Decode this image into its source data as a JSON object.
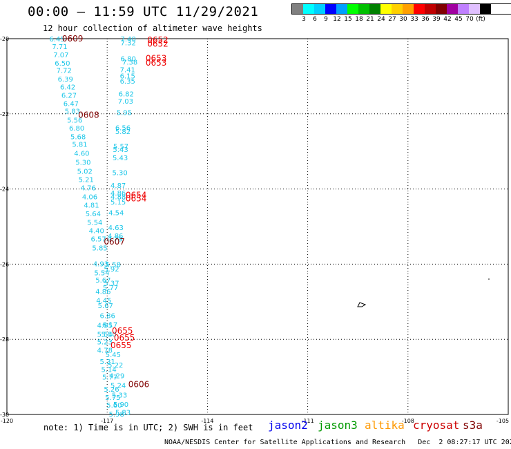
{
  "header": {
    "title": "00:00 – 11:59 UTC 11/29/2021",
    "subtitle": "12 hour collection of altimeter wave heights"
  },
  "legend": {
    "colors": [
      "#808080",
      "#00ffff",
      "#00d0ff",
      "#0000ff",
      "#00a0ff",
      "#00ff00",
      "#00c000",
      "#008000",
      "#ffff00",
      "#ffd000",
      "#ffa000",
      "#ff0000",
      "#c00000",
      "#800000",
      "#a000a0",
      "#c080ff",
      "#e0c0ff",
      "#000000"
    ],
    "ticks": [
      "3",
      "6",
      "9",
      "12",
      "15",
      "18",
      "21",
      "24",
      "27",
      "30",
      "33",
      "36",
      "39",
      "42",
      "45",
      "70",
      "(ft)"
    ]
  },
  "axes": {
    "x_ticks": [
      "-120",
      "-117",
      "-114",
      "-111",
      "-108",
      "-105"
    ],
    "y_ticks": [
      "-20",
      "-22",
      "-24",
      "-26",
      "-28",
      "-30"
    ]
  },
  "swh_labels": [
    {
      "t": "6.45",
      "lon": -118.73,
      "lat": -20.0
    },
    {
      "t": "7.71",
      "lon": -118.65,
      "lat": -20.2
    },
    {
      "t": "7.07",
      "lon": -118.61,
      "lat": -20.42
    },
    {
      "t": "6.50",
      "lon": -118.57,
      "lat": -20.64
    },
    {
      "t": "7.72",
      "lon": -118.52,
      "lat": -20.84
    },
    {
      "t": "6.39",
      "lon": -118.48,
      "lat": -21.07
    },
    {
      "t": "6.42",
      "lon": -118.41,
      "lat": -21.28
    },
    {
      "t": "6.27",
      "lon": -118.37,
      "lat": -21.5
    },
    {
      "t": "6.47",
      "lon": -118.31,
      "lat": -21.72
    },
    {
      "t": "5.83",
      "lon": -118.27,
      "lat": -21.92
    },
    {
      "t": "5.56",
      "lon": -118.2,
      "lat": -22.16
    },
    {
      "t": "6.80",
      "lon": -118.14,
      "lat": -22.37
    },
    {
      "t": "5.68",
      "lon": -118.1,
      "lat": -22.6
    },
    {
      "t": "5.81",
      "lon": -118.05,
      "lat": -22.8
    },
    {
      "t": "4.60",
      "lon": -117.99,
      "lat": -23.04
    },
    {
      "t": "5.30",
      "lon": -117.95,
      "lat": -23.28
    },
    {
      "t": "5.02",
      "lon": -117.9,
      "lat": -23.52
    },
    {
      "t": "5.21",
      "lon": -117.86,
      "lat": -23.74
    },
    {
      "t": "4.76",
      "lon": -117.8,
      "lat": -23.96
    },
    {
      "t": "4.06",
      "lon": -117.75,
      "lat": -24.2
    },
    {
      "t": "4.81",
      "lon": -117.7,
      "lat": -24.42
    },
    {
      "t": "5.64",
      "lon": -117.65,
      "lat": -24.65
    },
    {
      "t": "5.54",
      "lon": -117.6,
      "lat": -24.88
    },
    {
      "t": "4.40",
      "lon": -117.55,
      "lat": -25.1
    },
    {
      "t": "6.57",
      "lon": -117.49,
      "lat": -25.32
    },
    {
      "t": "5.85",
      "lon": -117.45,
      "lat": -25.56
    },
    {
      "t": "4.93",
      "lon": -117.42,
      "lat": -25.98
    },
    {
      "t": "5.54",
      "lon": -117.39,
      "lat": -26.22
    },
    {
      "t": "5.67",
      "lon": -117.35,
      "lat": -26.42
    },
    {
      "t": "4.86",
      "lon": -117.35,
      "lat": -26.72
    },
    {
      "t": "4.45",
      "lon": -117.33,
      "lat": -26.96
    },
    {
      "t": "5.67",
      "lon": -117.28,
      "lat": -27.1
    },
    {
      "t": "6.86",
      "lon": -117.22,
      "lat": -27.36
    },
    {
      "t": "4.95",
      "lon": -117.3,
      "lat": -27.62
    },
    {
      "t": "5.54",
      "lon": -117.3,
      "lat": -27.86
    },
    {
      "t": "5.23",
      "lon": -117.3,
      "lat": -28.06
    },
    {
      "t": "4.78",
      "lon": -117.3,
      "lat": -28.28
    },
    {
      "t": "5.31",
      "lon": -117.22,
      "lat": -28.58
    },
    {
      "t": "5.14",
      "lon": -117.18,
      "lat": -28.8
    },
    {
      "t": "5.77",
      "lon": -117.15,
      "lat": -29.0
    },
    {
      "t": "5.26",
      "lon": -117.1,
      "lat": -29.32
    },
    {
      "t": "5.75",
      "lon": -117.06,
      "lat": -29.54
    },
    {
      "t": "5.60",
      "lon": -117.02,
      "lat": -29.74
    },
    {
      "t": "5.98",
      "lon": -116.95,
      "lat": -29.98
    },
    {
      "t": "7.40",
      "lon": -116.6,
      "lat": -20.0
    },
    {
      "t": "7.32",
      "lon": -116.6,
      "lat": -20.1
    },
    {
      "t": "6.80",
      "lon": -116.6,
      "lat": -20.52
    },
    {
      "t": "7.38",
      "lon": -116.55,
      "lat": -20.62
    },
    {
      "t": "7.41",
      "lon": -116.62,
      "lat": -20.82
    },
    {
      "t": "6.15",
      "lon": -116.62,
      "lat": -20.98
    },
    {
      "t": "6.35",
      "lon": -116.62,
      "lat": -21.12
    },
    {
      "t": "6.82",
      "lon": -116.66,
      "lat": -21.46
    },
    {
      "t": "7.03",
      "lon": -116.68,
      "lat": -21.65
    },
    {
      "t": "5.95",
      "lon": -116.72,
      "lat": -21.96
    },
    {
      "t": "6.56",
      "lon": -116.76,
      "lat": -22.36
    },
    {
      "t": "5.82",
      "lon": -116.76,
      "lat": -22.46
    },
    {
      "t": "5.57",
      "lon": -116.82,
      "lat": -22.86
    },
    {
      "t": "5.43",
      "lon": -116.83,
      "lat": -22.94
    },
    {
      "t": "5.43",
      "lon": -116.84,
      "lat": -23.16
    },
    {
      "t": "5.30",
      "lon": -116.85,
      "lat": -23.56
    },
    {
      "t": "4.87",
      "lon": -116.9,
      "lat": -23.9
    },
    {
      "t": "4.86",
      "lon": -116.9,
      "lat": -24.1
    },
    {
      "t": "4.88",
      "lon": -116.9,
      "lat": -24.2
    },
    {
      "t": "5.15",
      "lon": -116.9,
      "lat": -24.34
    },
    {
      "t": "4.54",
      "lon": -116.96,
      "lat": -24.62
    },
    {
      "t": "4.63",
      "lon": -116.97,
      "lat": -25.02
    },
    {
      "t": "4.86",
      "lon": -116.98,
      "lat": -25.24
    },
    {
      "t": "4.79",
      "lon": -117.0,
      "lat": -25.32
    },
    {
      "t": "5.58",
      "lon": -117.05,
      "lat": -26.0
    },
    {
      "t": "5.92",
      "lon": -117.1,
      "lat": -26.12
    },
    {
      "t": "5.37",
      "lon": -117.1,
      "lat": -26.5
    },
    {
      "t": "5.77",
      "lon": -117.13,
      "lat": -26.62
    },
    {
      "t": "6.17",
      "lon": -117.15,
      "lat": -27.6
    },
    {
      "t": "5.50",
      "lon": -117.18,
      "lat": -27.86
    },
    {
      "t": "5.45",
      "lon": -117.05,
      "lat": -28.4
    },
    {
      "t": "5.22",
      "lon": -116.98,
      "lat": -28.68
    },
    {
      "t": "4.29",
      "lon": -116.94,
      "lat": -28.96
    },
    {
      "t": "5.24",
      "lon": -116.9,
      "lat": -29.22
    },
    {
      "t": "5.33",
      "lon": -116.86,
      "lat": -29.48
    },
    {
      "t": "5.90",
      "lon": -116.82,
      "lat": -29.72
    },
    {
      "t": "5.83",
      "lon": -116.76,
      "lat": -29.94
    }
  ],
  "time_labels": [
    {
      "t": "0609",
      "lon": -118.35,
      "lat": -20.0,
      "c": "#800000"
    },
    {
      "t": "0608",
      "lon": -117.87,
      "lat": -22.03,
      "c": "#800000"
    },
    {
      "t": "0607",
      "lon": -117.1,
      "lat": -25.4,
      "c": "#800000"
    },
    {
      "t": "0606",
      "lon": -116.37,
      "lat": -29.2,
      "c": "#800000"
    },
    {
      "t": "0652",
      "lon": -115.8,
      "lat": -20.04,
      "c": "#ee0000"
    },
    {
      "t": "0652",
      "lon": -115.8,
      "lat": -20.14,
      "c": "#ee0000"
    },
    {
      "t": "0653",
      "lon": -115.85,
      "lat": -20.52,
      "c": "#ee0000"
    },
    {
      "t": "0653",
      "lon": -115.85,
      "lat": -20.64,
      "c": "#ee0000"
    },
    {
      "t": "0654",
      "lon": -116.45,
      "lat": -24.16,
      "c": "#ee0000"
    },
    {
      "t": "0654",
      "lon": -116.45,
      "lat": -24.26,
      "c": "#ee0000"
    },
    {
      "t": "0655",
      "lon": -116.86,
      "lat": -27.78,
      "c": "#ee0000"
    },
    {
      "t": "0655",
      "lon": -116.8,
      "lat": -27.96,
      "c": "#ee0000"
    },
    {
      "t": "0655",
      "lon": -116.9,
      "lat": -28.16,
      "c": "#ee0000"
    }
  ],
  "footer": {
    "note": "note: 1) Time is in UTC; 2) SWH is in feet",
    "satellites": [
      {
        "name": "jason2",
        "color": "#0000ee"
      },
      {
        "name": "jason3",
        "color": "#009900"
      },
      {
        "name": "altika",
        "color": "#ff9900"
      },
      {
        "name": "cryosat",
        "color": "#cc0000"
      },
      {
        "name": "s3a",
        "color": "#800000"
      }
    ],
    "credit": "NOAA/NESDIS Center for Satellite Applications and Research",
    "timestamp": "Dec  2 08:27:17 UTC 2021"
  }
}
